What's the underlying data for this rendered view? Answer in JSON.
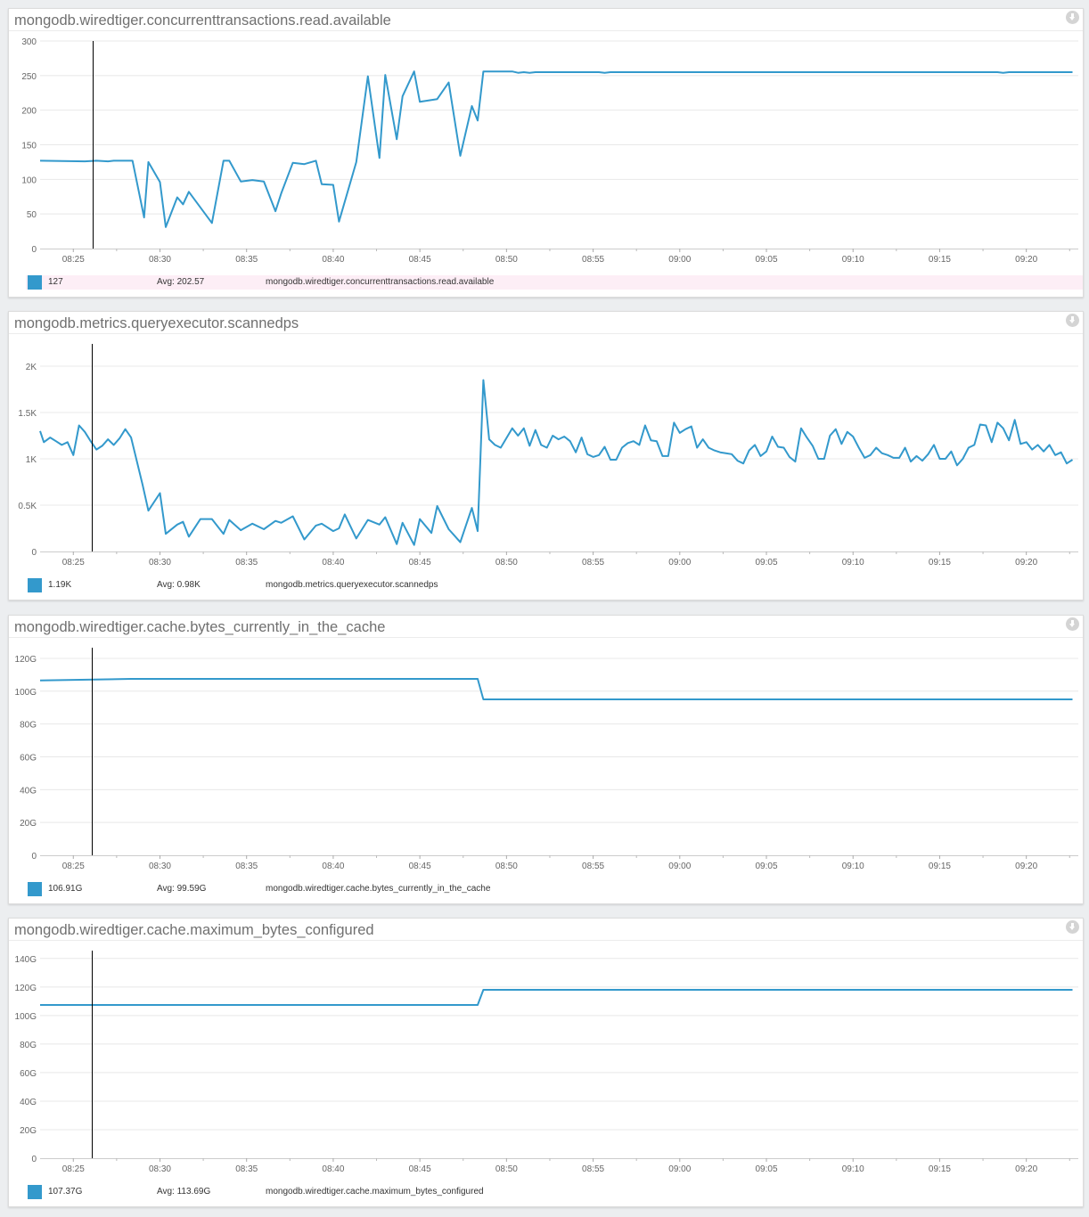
{
  "colors": {
    "series": "#3399cc",
    "grid": "#e8e8e8",
    "axis": "#cccccc",
    "cursor": "#000000",
    "legend_highlight": "#fdeef6",
    "title": "#707070"
  },
  "icons": {
    "panel_action": "download-circle-icon"
  },
  "chart_data": [
    {
      "type": "line",
      "title": "mongodb.wiredtiger.concurrenttransactions.read.available",
      "xlim": [
        "08:23:05",
        "09:23:00"
      ],
      "x_ticks": [
        "08:25",
        "08:30",
        "08:35",
        "08:40",
        "08:45",
        "08:50",
        "08:55",
        "09:00",
        "09:05",
        "09:10",
        "09:15",
        "09:20"
      ],
      "ylim": [
        0,
        300
      ],
      "y_ticks": [
        0,
        50,
        100,
        150,
        200,
        250,
        300
      ],
      "y_tick_labels": [
        "0",
        "50",
        "100",
        "150",
        "200",
        "250",
        "300"
      ],
      "grid": true,
      "cursor_time": "08:26:08",
      "legend": {
        "value": "127",
        "avg": "Avg: 202.57",
        "name": "mongodb.wiredtiger.concurrenttransactions.read.available",
        "highlighted": true
      },
      "points": [
        [
          "08:23:05",
          127
        ],
        [
          "08:25:40",
          126
        ],
        [
          "08:26:20",
          127
        ],
        [
          "08:27:00",
          126
        ],
        [
          "08:27:20",
          127
        ],
        [
          "08:28:25",
          127
        ],
        [
          "08:29:05",
          45
        ],
        [
          "08:29:20",
          125
        ],
        [
          "08:30:00",
          96
        ],
        [
          "08:30:20",
          31
        ],
        [
          "08:31:00",
          74
        ],
        [
          "08:31:20",
          64
        ],
        [
          "08:31:40",
          82
        ],
        [
          "08:33:00",
          37
        ],
        [
          "08:33:40",
          127
        ],
        [
          "08:34:00",
          127
        ],
        [
          "08:34:40",
          97
        ],
        [
          "08:35:20",
          99
        ],
        [
          "08:36:00",
          97
        ],
        [
          "08:36:40",
          54
        ],
        [
          "08:37:00",
          80
        ],
        [
          "08:37:40",
          124
        ],
        [
          "08:38:20",
          122
        ],
        [
          "08:39:00",
          127
        ],
        [
          "08:39:20",
          93
        ],
        [
          "08:40:00",
          92
        ],
        [
          "08:40:20",
          39
        ],
        [
          "08:41:20",
          125
        ],
        [
          "08:42:00",
          249
        ],
        [
          "08:42:40",
          131
        ],
        [
          "08:43:00",
          251
        ],
        [
          "08:43:40",
          158
        ],
        [
          "08:44:00",
          220
        ],
        [
          "08:44:40",
          256
        ],
        [
          "08:45:00",
          212
        ],
        [
          "08:46:00",
          216
        ],
        [
          "08:46:40",
          240
        ],
        [
          "08:47:20",
          134
        ],
        [
          "08:48:00",
          206
        ],
        [
          "08:48:20",
          185
        ],
        [
          "08:48:40",
          256
        ],
        [
          "08:50:20",
          256
        ],
        [
          "08:50:40",
          254
        ],
        [
          "08:51:00",
          255
        ],
        [
          "08:51:20",
          254
        ],
        [
          "08:51:40",
          255
        ],
        [
          "08:55:20",
          255
        ],
        [
          "08:55:40",
          254
        ],
        [
          "08:56:00",
          255
        ],
        [
          "09:18:20",
          255
        ],
        [
          "09:18:40",
          254
        ],
        [
          "09:19:00",
          255
        ],
        [
          "09:22:40",
          255
        ]
      ]
    },
    {
      "type": "line",
      "title": "mongodb.metrics.queryexecutor.scannedps",
      "xlim": [
        "08:23:05",
        "09:23:00"
      ],
      "x_ticks": [
        "08:25",
        "08:30",
        "08:35",
        "08:40",
        "08:45",
        "08:50",
        "08:55",
        "09:00",
        "09:05",
        "09:10",
        "09:15",
        "09:20"
      ],
      "ylim": [
        0,
        2240
      ],
      "y_ticks": [
        0,
        500,
        1000,
        1500,
        2000
      ],
      "y_tick_labels": [
        "0",
        "0.5K",
        "1K",
        "1.5K",
        "2K"
      ],
      "grid": true,
      "cursor_time": "08:26:05",
      "legend": {
        "value": "1.19K",
        "avg": "Avg: 0.98K",
        "name": "mongodb.metrics.queryexecutor.scannedps",
        "highlighted": false
      },
      "points": [
        [
          "08:23:05",
          1300
        ],
        [
          "08:23:18",
          1180
        ],
        [
          "08:23:40",
          1230
        ],
        [
          "08:24:00",
          1190
        ],
        [
          "08:24:20",
          1150
        ],
        [
          "08:24:40",
          1180
        ],
        [
          "08:25:00",
          1040
        ],
        [
          "08:25:20",
          1360
        ],
        [
          "08:25:40",
          1290
        ],
        [
          "08:26:00",
          1190
        ],
        [
          "08:26:20",
          1100
        ],
        [
          "08:26:40",
          1140
        ],
        [
          "08:27:00",
          1210
        ],
        [
          "08:27:20",
          1150
        ],
        [
          "08:27:40",
          1220
        ],
        [
          "08:28:00",
          1320
        ],
        [
          "08:28:20",
          1230
        ],
        [
          "08:29:00",
          720
        ],
        [
          "08:29:20",
          440
        ],
        [
          "08:30:00",
          630
        ],
        [
          "08:30:20",
          190
        ],
        [
          "08:31:00",
          290
        ],
        [
          "08:31:20",
          320
        ],
        [
          "08:31:40",
          160
        ],
        [
          "08:32:20",
          350
        ],
        [
          "08:33:00",
          350
        ],
        [
          "08:33:40",
          190
        ],
        [
          "08:34:00",
          340
        ],
        [
          "08:34:40",
          230
        ],
        [
          "08:35:20",
          300
        ],
        [
          "08:36:00",
          240
        ],
        [
          "08:36:40",
          330
        ],
        [
          "08:37:00",
          310
        ],
        [
          "08:37:40",
          380
        ],
        [
          "08:38:20",
          130
        ],
        [
          "08:39:00",
          280
        ],
        [
          "08:39:20",
          300
        ],
        [
          "08:40:00",
          220
        ],
        [
          "08:40:20",
          250
        ],
        [
          "08:40:40",
          400
        ],
        [
          "08:41:20",
          140
        ],
        [
          "08:42:00",
          340
        ],
        [
          "08:42:40",
          290
        ],
        [
          "08:43:00",
          370
        ],
        [
          "08:43:40",
          80
        ],
        [
          "08:44:00",
          310
        ],
        [
          "08:44:40",
          70
        ],
        [
          "08:45:00",
          350
        ],
        [
          "08:45:40",
          200
        ],
        [
          "08:46:00",
          490
        ],
        [
          "08:46:40",
          240
        ],
        [
          "08:47:20",
          100
        ],
        [
          "08:48:00",
          470
        ],
        [
          "08:48:20",
          220
        ],
        [
          "08:48:40",
          1850
        ],
        [
          "08:49:00",
          1210
        ],
        [
          "08:49:20",
          1150
        ],
        [
          "08:49:40",
          1120
        ],
        [
          "08:50:20",
          1330
        ],
        [
          "08:50:40",
          1250
        ],
        [
          "08:51:00",
          1330
        ],
        [
          "08:51:20",
          1140
        ],
        [
          "08:51:40",
          1310
        ],
        [
          "08:52:00",
          1150
        ],
        [
          "08:52:20",
          1120
        ],
        [
          "08:52:40",
          1250
        ],
        [
          "08:53:00",
          1210
        ],
        [
          "08:53:20",
          1240
        ],
        [
          "08:53:40",
          1190
        ],
        [
          "08:54:00",
          1070
        ],
        [
          "08:54:20",
          1230
        ],
        [
          "08:54:40",
          1050
        ],
        [
          "08:55:00",
          1020
        ],
        [
          "08:55:20",
          1040
        ],
        [
          "08:55:40",
          1130
        ],
        [
          "08:56:00",
          990
        ],
        [
          "08:56:20",
          990
        ],
        [
          "08:56:40",
          1120
        ],
        [
          "08:57:00",
          1170
        ],
        [
          "08:57:20",
          1190
        ],
        [
          "08:57:40",
          1150
        ],
        [
          "08:58:00",
          1360
        ],
        [
          "08:58:20",
          1200
        ],
        [
          "08:58:40",
          1190
        ],
        [
          "08:59:00",
          1030
        ],
        [
          "08:59:20",
          1030
        ],
        [
          "08:59:40",
          1390
        ],
        [
          "09:00:00",
          1280
        ],
        [
          "09:00:20",
          1320
        ],
        [
          "09:00:40",
          1350
        ],
        [
          "09:01:00",
          1120
        ],
        [
          "09:01:20",
          1210
        ],
        [
          "09:01:40",
          1120
        ],
        [
          "09:02:00",
          1090
        ],
        [
          "09:02:20",
          1070
        ],
        [
          "09:02:40",
          1060
        ],
        [
          "09:03:00",
          1050
        ],
        [
          "09:03:20",
          980
        ],
        [
          "09:03:40",
          950
        ],
        [
          "09:04:00",
          1090
        ],
        [
          "09:04:20",
          1150
        ],
        [
          "09:04:40",
          1030
        ],
        [
          "09:05:00",
          1080
        ],
        [
          "09:05:20",
          1240
        ],
        [
          "09:05:40",
          1130
        ],
        [
          "09:06:00",
          1120
        ],
        [
          "09:06:20",
          1020
        ],
        [
          "09:06:40",
          970
        ],
        [
          "09:07:00",
          1330
        ],
        [
          "09:07:20",
          1230
        ],
        [
          "09:07:40",
          1140
        ],
        [
          "09:08:00",
          1000
        ],
        [
          "09:08:20",
          1000
        ],
        [
          "09:08:40",
          1250
        ],
        [
          "09:09:00",
          1320
        ],
        [
          "09:09:20",
          1160
        ],
        [
          "09:09:40",
          1290
        ],
        [
          "09:10:00",
          1240
        ],
        [
          "09:10:20",
          1120
        ],
        [
          "09:10:40",
          1010
        ],
        [
          "09:11:00",
          1040
        ],
        [
          "09:11:20",
          1120
        ],
        [
          "09:11:40",
          1060
        ],
        [
          "09:12:00",
          1040
        ],
        [
          "09:12:20",
          1010
        ],
        [
          "09:12:40",
          1010
        ],
        [
          "09:13:00",
          1120
        ],
        [
          "09:13:20",
          970
        ],
        [
          "09:13:40",
          1030
        ],
        [
          "09:14:00",
          980
        ],
        [
          "09:14:20",
          1050
        ],
        [
          "09:14:40",
          1150
        ],
        [
          "09:15:00",
          1000
        ],
        [
          "09:15:20",
          1000
        ],
        [
          "09:15:40",
          1080
        ],
        [
          "09:16:00",
          930
        ],
        [
          "09:16:20",
          1000
        ],
        [
          "09:16:40",
          1120
        ],
        [
          "09:17:00",
          1150
        ],
        [
          "09:17:20",
          1370
        ],
        [
          "09:17:40",
          1360
        ],
        [
          "09:18:00",
          1180
        ],
        [
          "09:18:20",
          1390
        ],
        [
          "09:18:40",
          1330
        ],
        [
          "09:19:00",
          1200
        ],
        [
          "09:19:20",
          1420
        ],
        [
          "09:19:40",
          1160
        ],
        [
          "09:20:00",
          1180
        ],
        [
          "09:20:20",
          1100
        ],
        [
          "09:20:40",
          1150
        ],
        [
          "09:21:00",
          1080
        ],
        [
          "09:21:20",
          1150
        ],
        [
          "09:21:40",
          1040
        ],
        [
          "09:22:00",
          1070
        ],
        [
          "09:22:20",
          950
        ],
        [
          "09:22:40",
          990
        ]
      ]
    },
    {
      "type": "line",
      "title": "mongodb.wiredtiger.cache.bytes_currently_in_the_cache",
      "xlim": [
        "08:23:05",
        "09:23:00"
      ],
      "x_ticks": [
        "08:25",
        "08:30",
        "08:35",
        "08:40",
        "08:45",
        "08:50",
        "08:55",
        "09:00",
        "09:05",
        "09:10",
        "09:15",
        "09:20"
      ],
      "ylim": [
        0,
        126.5
      ],
      "y_ticks": [
        0,
        20,
        40,
        60,
        80,
        100,
        120
      ],
      "y_tick_labels": [
        "0",
        "20G",
        "40G",
        "60G",
        "80G",
        "100G",
        "120G"
      ],
      "grid": true,
      "cursor_time": "08:26:05",
      "legend": {
        "value": "106.91G",
        "avg": "Avg: 99.59G",
        "name": "mongodb.wiredtiger.cache.bytes_currently_in_the_cache",
        "highlighted": false
      },
      "points": [
        [
          "08:23:05",
          106.5
        ],
        [
          "08:28:20",
          107.5
        ],
        [
          "08:48:20",
          107.5
        ],
        [
          "08:48:40",
          95
        ],
        [
          "09:22:40",
          95
        ]
      ]
    },
    {
      "type": "line",
      "title": "mongodb.wiredtiger.cache.maximum_bytes_configured",
      "xlim": [
        "08:23:05",
        "09:23:00"
      ],
      "x_ticks": [
        "08:25",
        "08:30",
        "08:35",
        "08:40",
        "08:45",
        "08:50",
        "08:55",
        "09:00",
        "09:05",
        "09:10",
        "09:15",
        "09:20"
      ],
      "ylim": [
        0,
        145.5
      ],
      "y_ticks": [
        0,
        20,
        40,
        60,
        80,
        100,
        120,
        140
      ],
      "y_tick_labels": [
        "0",
        "20G",
        "40G",
        "60G",
        "80G",
        "100G",
        "120G",
        "140G"
      ],
      "grid": true,
      "cursor_time": "08:26:05",
      "legend": {
        "value": "107.37G",
        "avg": "Avg: 113.69G",
        "name": "mongodb.wiredtiger.cache.maximum_bytes_configured",
        "highlighted": false
      },
      "points": [
        [
          "08:23:05",
          107.4
        ],
        [
          "08:48:20",
          107.4
        ],
        [
          "08:48:40",
          118
        ],
        [
          "09:22:40",
          118
        ]
      ]
    }
  ]
}
